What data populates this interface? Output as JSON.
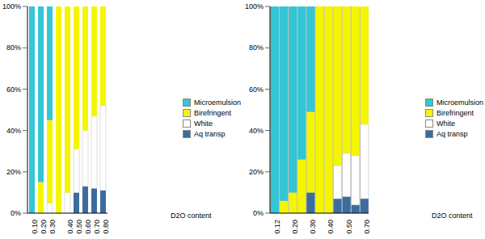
{
  "chart_data": [
    {
      "type": "bar",
      "stacked": true,
      "x_label": "D2O content",
      "legend": "right",
      "grid": false,
      "categories": [
        "0.10",
        "0.20",
        "0.30",
        null,
        "0.40",
        "0.50",
        "0.60",
        "0.70",
        "0.80"
      ],
      "series": [
        {
          "name": "Aq transp",
          "color": "#3b6c9e",
          "values": [
            0,
            0,
            0,
            0,
            0,
            10,
            13,
            12,
            11
          ]
        },
        {
          "name": "White",
          "color": "#ffffff",
          "values": [
            0,
            0,
            5,
            0,
            10,
            21,
            27,
            35,
            41
          ]
        },
        {
          "name": "Birefringent",
          "color": "#f5f500",
          "values": [
            0,
            15,
            40,
            100,
            90,
            69,
            60,
            53,
            48
          ]
        },
        {
          "name": "Microemulsion",
          "color": "#33c6d6",
          "values": [
            100,
            85,
            55,
            0,
            0,
            0,
            0,
            0,
            0
          ]
        }
      ],
      "ylim": [
        0,
        100
      ],
      "yticks": [
        {
          "value": 0,
          "label": "0%"
        },
        {
          "value": 20,
          "label": "20%"
        },
        {
          "value": 40,
          "label": "40%"
        },
        {
          "value": 60,
          "label": "60%"
        },
        {
          "value": 80,
          "label": "80%"
        },
        {
          "value": 100,
          "label": "100%"
        }
      ]
    },
    {
      "type": "bar",
      "stacked": true,
      "x_label": "D2O content",
      "legend": "right",
      "grid": false,
      "categories": [
        "0.12",
        null,
        "0.20",
        null,
        "0.30",
        null,
        "0.40",
        null,
        "0.50",
        null,
        "0.70"
      ],
      "series": [
        {
          "name": "Aq transp",
          "color": "#3b6c9e",
          "values": [
            0,
            0,
            0,
            0,
            10,
            0,
            0,
            7,
            8,
            4,
            7
          ]
        },
        {
          "name": "White",
          "color": "#ffffff",
          "values": [
            0,
            0,
            0,
            0,
            0,
            0,
            0,
            16,
            21,
            24,
            36
          ]
        },
        {
          "name": "Birefringent",
          "color": "#f5f500",
          "values": [
            0,
            6,
            10,
            26,
            39,
            100,
            100,
            77,
            71,
            72,
            57
          ]
        },
        {
          "name": "Microemulsion",
          "color": "#33c6d6",
          "values": [
            100,
            94,
            90,
            74,
            51,
            0,
            0,
            0,
            0,
            0,
            0
          ]
        }
      ],
      "ylim": [
        0,
        100
      ],
      "yticks": [
        {
          "value": 0,
          "label": "0%"
        },
        {
          "value": 20,
          "label": "20%"
        },
        {
          "value": 40,
          "label": "40%"
        },
        {
          "value": 60,
          "label": "60%"
        },
        {
          "value": 80,
          "label": "80%"
        },
        {
          "value": 100,
          "label": "100%"
        }
      ]
    }
  ]
}
